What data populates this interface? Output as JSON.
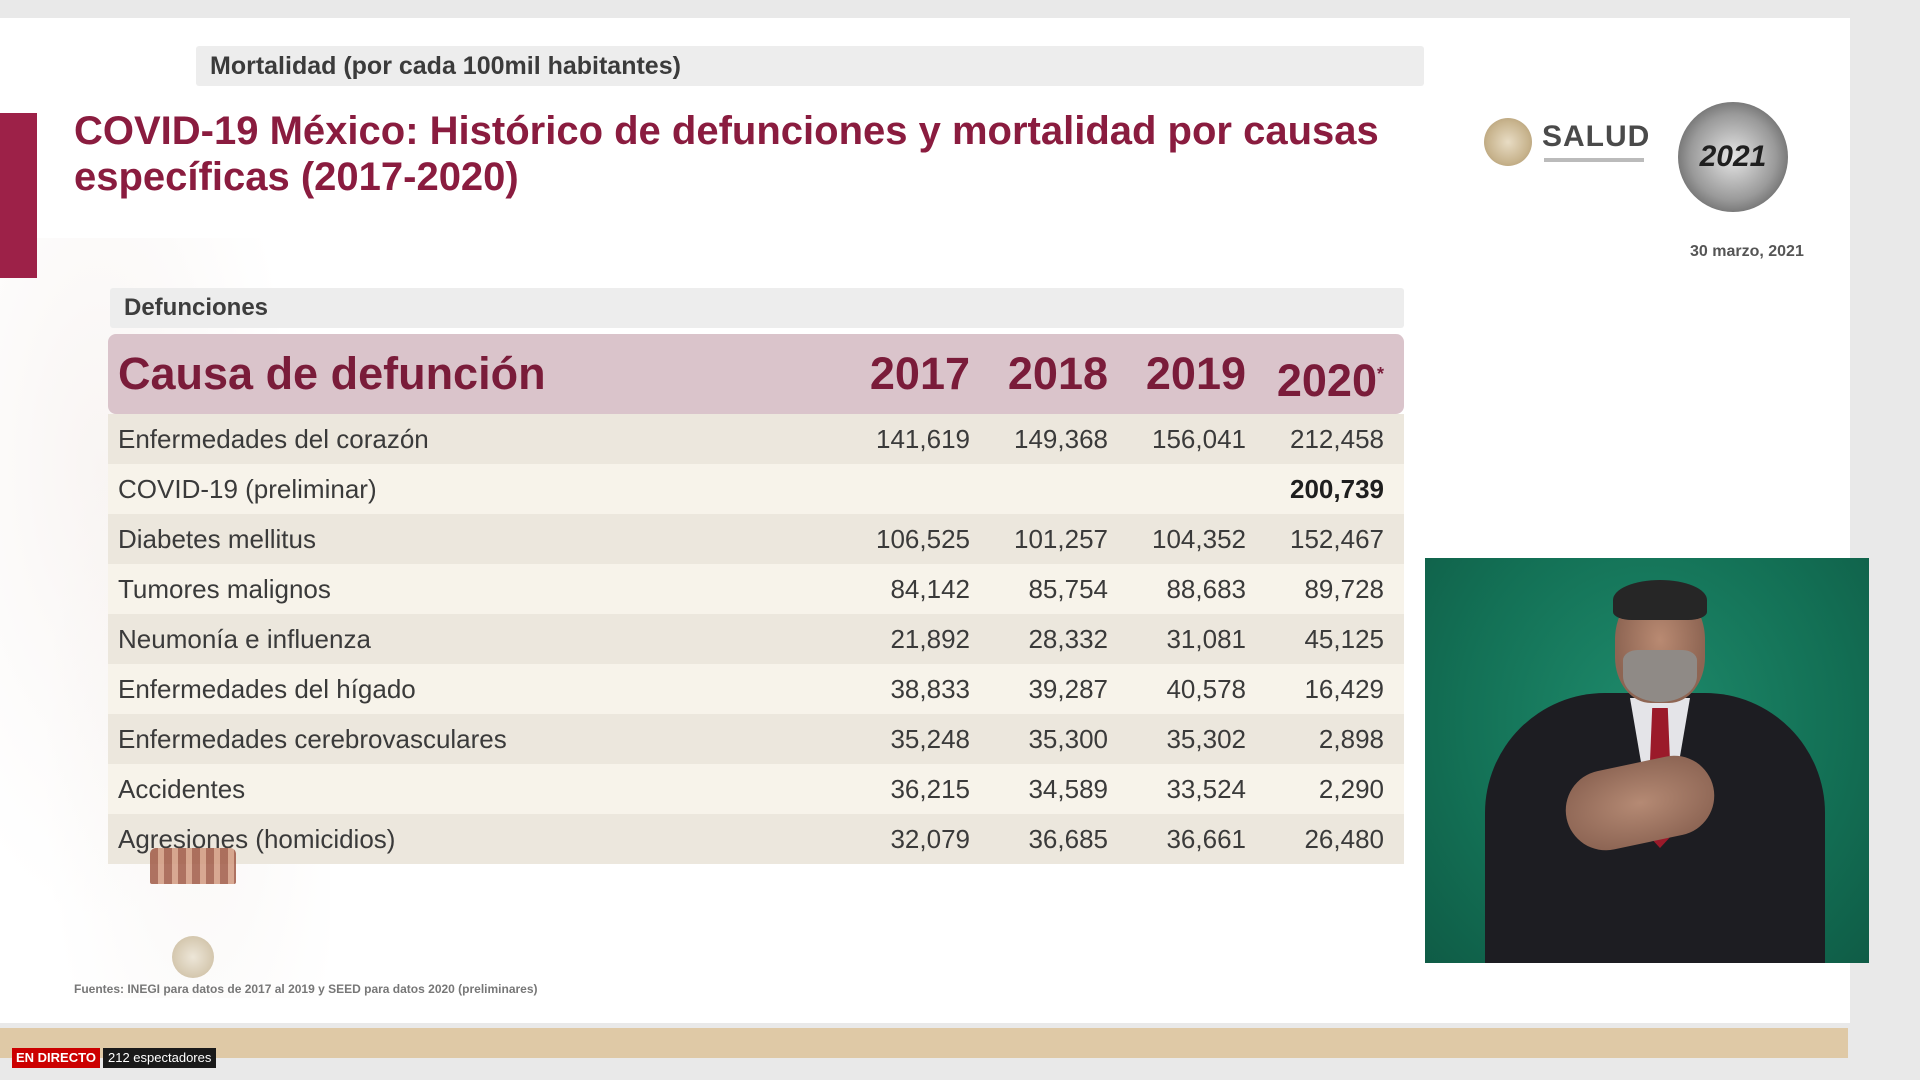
{
  "slide": {
    "subtitle": "Mortalidad (por cada 100mil habitantes)",
    "title": "COVID-19 México: Histórico de defunciones y mortalidad por causas específicas (2017-2020)",
    "logo_text": "SALUD",
    "emblem_year": "2021",
    "date": "30 marzo, 2021",
    "section_label": "Defunciones",
    "footnote": "Fuentes: INEGI para datos de 2017 al 2019 y SEED para datos 2020 (preliminares)"
  },
  "table": {
    "header_label": "Causa de defunción",
    "years": [
      "2017",
      "2018",
      "2019",
      "2020"
    ],
    "year_marker": "*",
    "rows": [
      {
        "cause": "Enfermedades del corazón",
        "values": [
          "141,619",
          "149,368",
          "156,041",
          "212,458"
        ]
      },
      {
        "cause": "COVID-19 (preliminar)",
        "values": [
          "",
          "",
          "",
          "200,739"
        ]
      },
      {
        "cause": "Diabetes mellitus",
        "values": [
          "106,525",
          "101,257",
          "104,352",
          "152,467"
        ]
      },
      {
        "cause": "Tumores malignos",
        "values": [
          "84,142",
          "85,754",
          "88,683",
          "89,728"
        ]
      },
      {
        "cause": "Neumonía e influenza",
        "values": [
          "21,892",
          "28,332",
          "31,081",
          "45,125"
        ]
      },
      {
        "cause": "Enfermedades del hígado",
        "values": [
          "38,833",
          "39,287",
          "40,578",
          "16,429"
        ]
      },
      {
        "cause": "Enfermedades cerebrovasculares",
        "values": [
          "35,248",
          "35,300",
          "35,302",
          "2,898"
        ]
      },
      {
        "cause": "Accidentes",
        "values": [
          "36,215",
          "34,589",
          "33,524",
          "2,290"
        ]
      },
      {
        "cause": "Agresiones (homicidios)",
        "values": [
          "32,079",
          "36,685",
          "36,661",
          "26,480"
        ]
      }
    ]
  },
  "stream": {
    "live_label": "EN DIRECTO",
    "viewers_label": "212 espectadores"
  },
  "colors": {
    "accent": "#8a1c3f",
    "header_bg": "#dac4cb",
    "row_shade": "#ece7dd",
    "row_light": "#f7f3ea",
    "live_red": "#cc0000"
  }
}
